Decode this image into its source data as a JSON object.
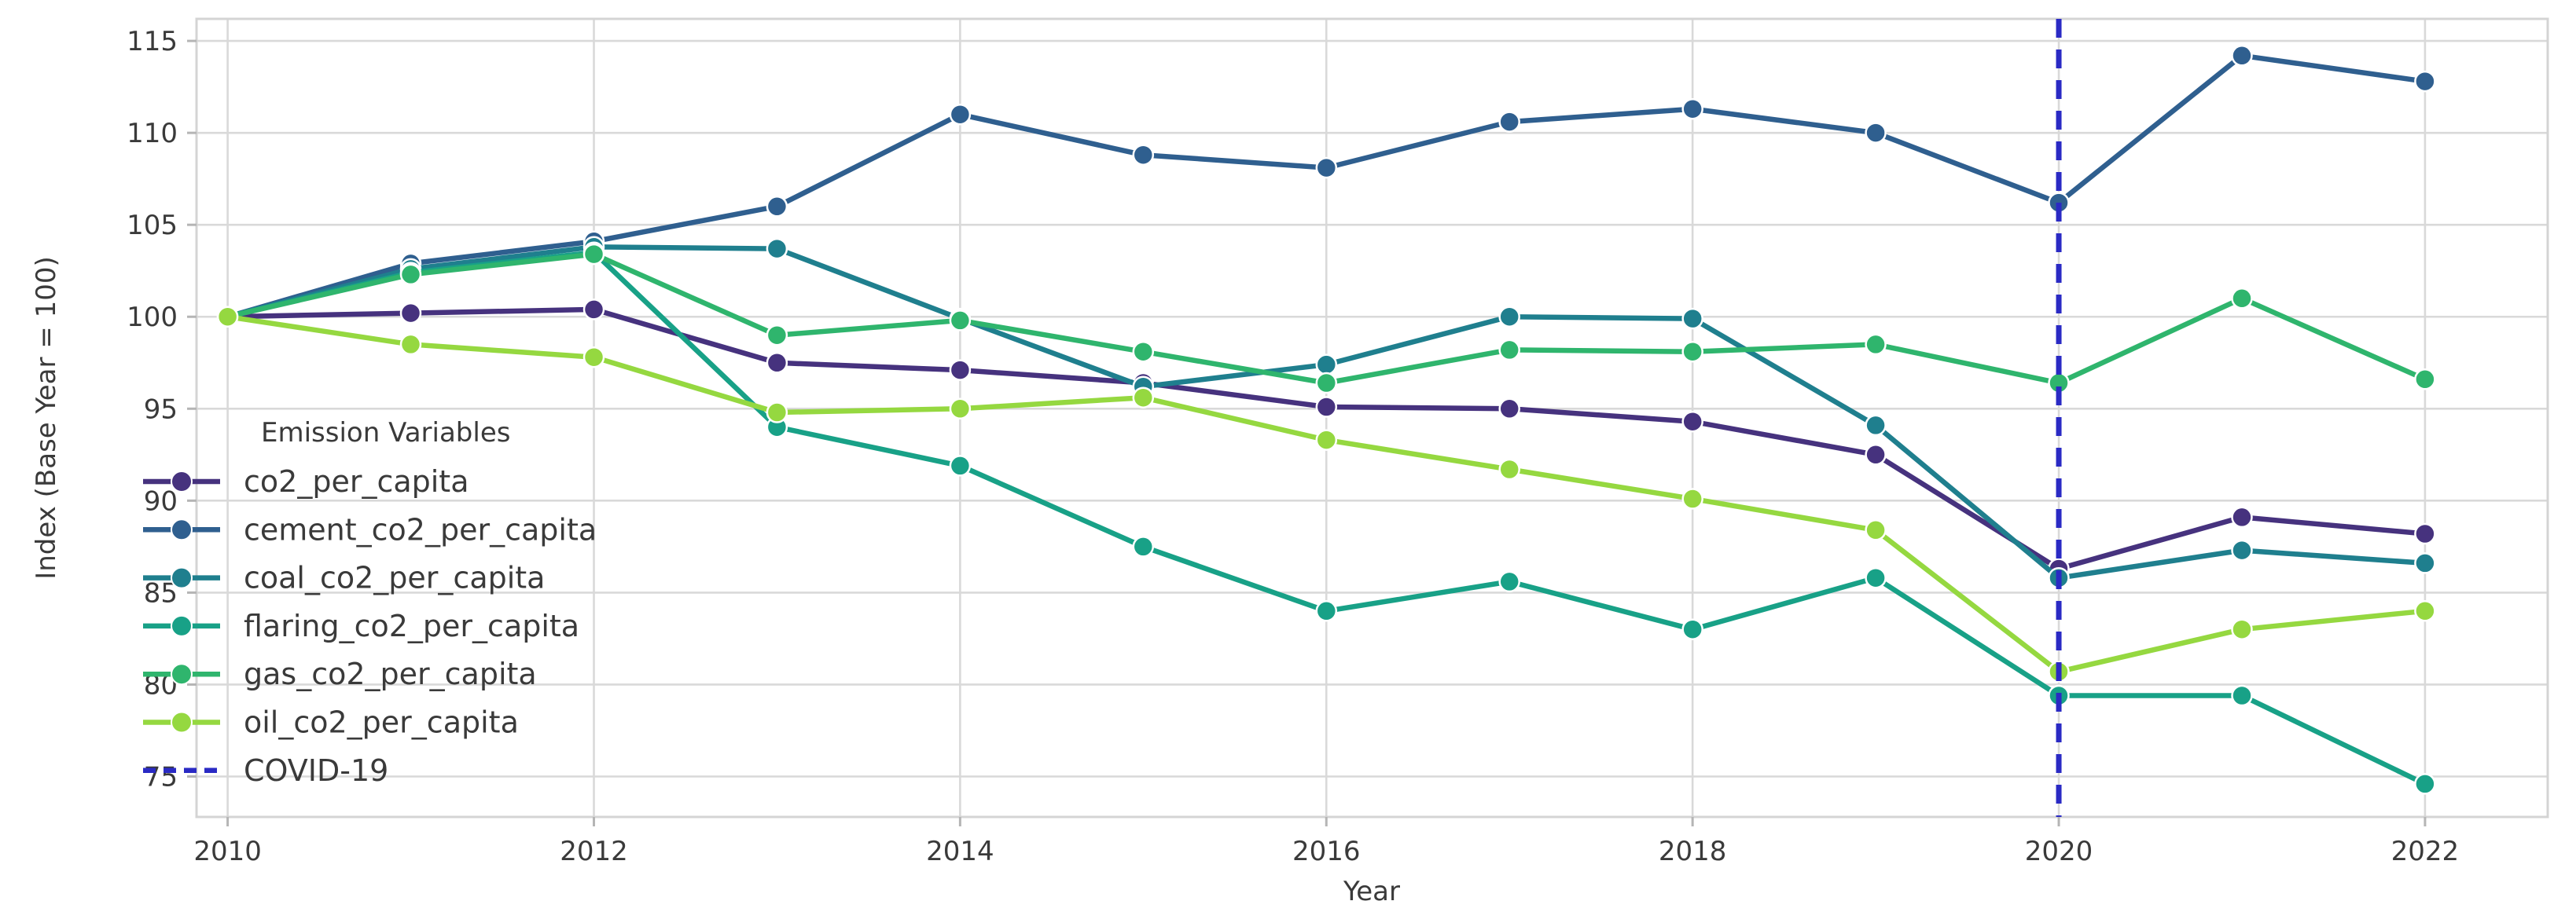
{
  "chart_data": {
    "type": "line",
    "title": "",
    "xlabel": "Year",
    "ylabel": "Index (Base Year = 100)",
    "legend_title": "Emission Variables",
    "x": [
      2010,
      2011,
      2012,
      2013,
      2014,
      2015,
      2016,
      2017,
      2018,
      2019,
      2020,
      2021,
      2022
    ],
    "x_ticks": [
      2010,
      2012,
      2014,
      2016,
      2018,
      2020,
      2022
    ],
    "y_ticks": [
      75,
      80,
      85,
      90,
      95,
      100,
      105,
      110,
      115
    ],
    "xlim": [
      2009.83,
      2022.67
    ],
    "ylim": [
      72.8,
      116.2
    ],
    "grid": true,
    "legend_position": "lower-left",
    "background_color": "#ffffff",
    "grid_color": "#d9d9d9",
    "text_color": "#3a3a3a",
    "series": [
      {
        "name": "co2_per_capita",
        "color": "#46327e",
        "values": [
          100.0,
          100.2,
          100.4,
          97.5,
          97.1,
          96.4,
          95.1,
          95.0,
          94.3,
          92.5,
          86.3,
          89.1,
          88.2
        ]
      },
      {
        "name": "cement_co2_per_capita",
        "color": "#2f5f8f",
        "values": [
          100.0,
          102.9,
          104.1,
          106.0,
          111.0,
          108.8,
          108.1,
          110.6,
          111.3,
          110.0,
          106.2,
          114.2,
          112.8
        ]
      },
      {
        "name": "coal_co2_per_capita",
        "color": "#1f7f8e",
        "values": [
          100.0,
          102.6,
          103.8,
          103.7,
          99.9,
          96.2,
          97.4,
          100.0,
          99.9,
          94.1,
          85.8,
          87.3,
          86.6
        ]
      },
      {
        "name": "flaring_co2_per_capita",
        "color": "#18a187",
        "values": [
          100.0,
          102.4,
          103.5,
          94.0,
          91.9,
          87.5,
          84.0,
          85.6,
          83.0,
          85.8,
          79.4,
          79.4,
          74.6
        ]
      },
      {
        "name": "gas_co2_per_capita",
        "color": "#2fb56d",
        "values": [
          100.0,
          102.3,
          103.4,
          99.0,
          99.8,
          98.1,
          96.4,
          98.2,
          98.1,
          98.5,
          96.4,
          101.0,
          96.6
        ]
      },
      {
        "name": "oil_co2_per_capita",
        "color": "#95d840",
        "values": [
          100.0,
          98.5,
          97.8,
          94.8,
          95.0,
          95.6,
          93.3,
          91.7,
          90.1,
          88.4,
          80.7,
          83.0,
          84.0
        ]
      }
    ],
    "vline": {
      "label": "COVID-19",
      "x": 2020,
      "color": "#2a2ac4",
      "style": "dashed"
    }
  }
}
